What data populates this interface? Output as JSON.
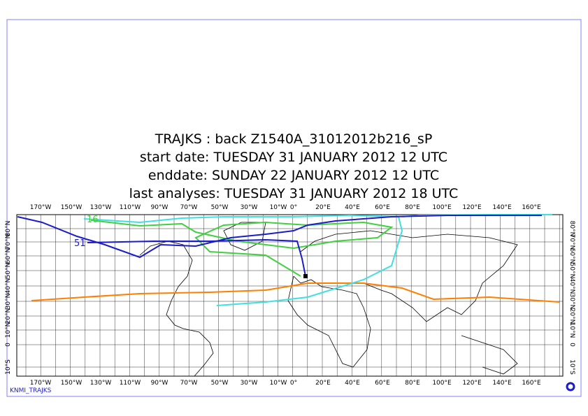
{
  "header": {
    "title_lines": [
      "TRAJKS : back Z1540A_31012012b216_sP",
      "start date:  TUESDAY   31 JANUARY   2012 12 UTC",
      "enddate:  SUNDAY    22 JANUARY   2012 12 UTC",
      "last analyses:  TUESDAY   31 JANUARY   2012 18 UTC"
    ]
  },
  "map": {
    "lon_labels": [
      "170°W",
      "150°W",
      "130°W",
      "110°W",
      "90°W",
      "70°W",
      "50°W",
      "30°W",
      "10°W",
      "0°",
      "20°E",
      "40°E",
      "60°E",
      "80°E",
      "100°E",
      "120°E",
      "140°E",
      "160°E"
    ],
    "lat_labels": [
      "80°N",
      "70°N",
      "60°N",
      "50°N",
      "40°N",
      "30°N",
      "20°N",
      "10°N",
      "0",
      "10°S"
    ],
    "trajectory_labels": [
      "16",
      "51"
    ]
  },
  "footer": {
    "source": "KNMI_TRAJKS"
  }
}
